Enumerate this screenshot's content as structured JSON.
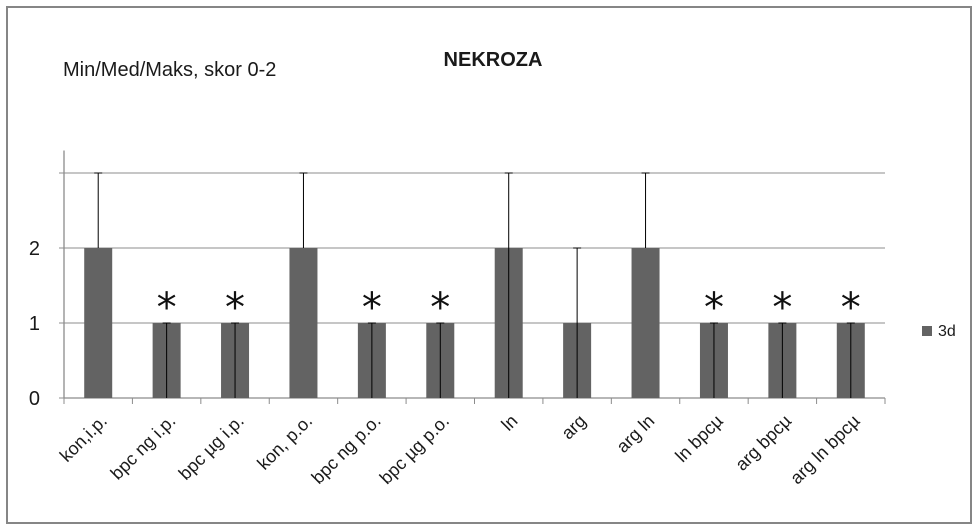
{
  "chart_data": {
    "type": "bar",
    "title": "NEKROZA",
    "ylabel": "Min/Med/Maks, skor 0-2",
    "xlabel": "",
    "ylim": [
      0,
      3.3
    ],
    "yticks": [
      "0",
      "1",
      "2",
      ""
    ],
    "ytick_values": [
      0,
      1,
      2,
      3
    ],
    "grid": true,
    "legend_position": "right",
    "categories": [
      "kon,i.p.",
      "bpc ng i.p.",
      "bpc µg i.p.",
      "kon, p.o.",
      "bpc ng p.o.",
      "bpc µg p.o.",
      "ln",
      "arg",
      "arg ln",
      "ln bpcµ",
      "arg bpcµ",
      "arg ln bpcµ"
    ],
    "series": [
      {
        "name": "3d",
        "color": "#636363",
        "values": [
          2,
          1,
          1,
          2,
          1,
          1,
          2,
          1,
          2,
          1,
          1,
          1
        ],
        "min": [
          2,
          0,
          0,
          2,
          0,
          0,
          0,
          0,
          2,
          0,
          0,
          0
        ],
        "max": [
          3,
          1,
          1,
          3,
          1,
          1,
          3,
          2,
          3,
          1,
          1,
          1
        ]
      }
    ],
    "annotations": [
      "",
      "*",
      "*",
      "",
      "*",
      "*",
      "",
      "",
      "",
      "*",
      "*",
      "*"
    ]
  }
}
